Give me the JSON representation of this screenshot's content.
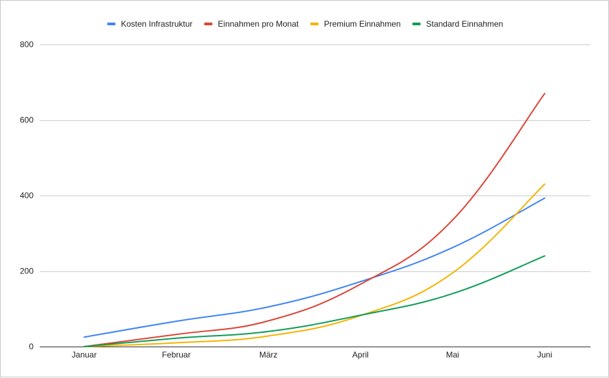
{
  "chart_data": {
    "type": "line",
    "categories": [
      "Januar",
      "Februar",
      "März",
      "April",
      "Mai",
      "Juni"
    ],
    "series": [
      {
        "name": "Kosten Infrastruktur",
        "color": "#4285f4",
        "values": [
          25,
          67,
          105,
          172,
          262,
          393
        ]
      },
      {
        "name": "Einnahmen pro Monat",
        "color": "#db4437",
        "values": [
          0,
          32,
          68,
          165,
          335,
          670
        ]
      },
      {
        "name": "Premium Einnahmen",
        "color": "#f4b400",
        "values": [
          0,
          10,
          28,
          82,
          195,
          430
        ]
      },
      {
        "name": "Standard Einnahmen",
        "color": "#0f9d58",
        "values": [
          0,
          22,
          40,
          83,
          140,
          240
        ]
      }
    ],
    "ylim": [
      0,
      800
    ],
    "yticks": [
      0,
      200,
      400,
      600,
      800
    ],
    "grid": true,
    "legend": "top-center",
    "title": "",
    "xlabel": "",
    "ylabel": ""
  }
}
